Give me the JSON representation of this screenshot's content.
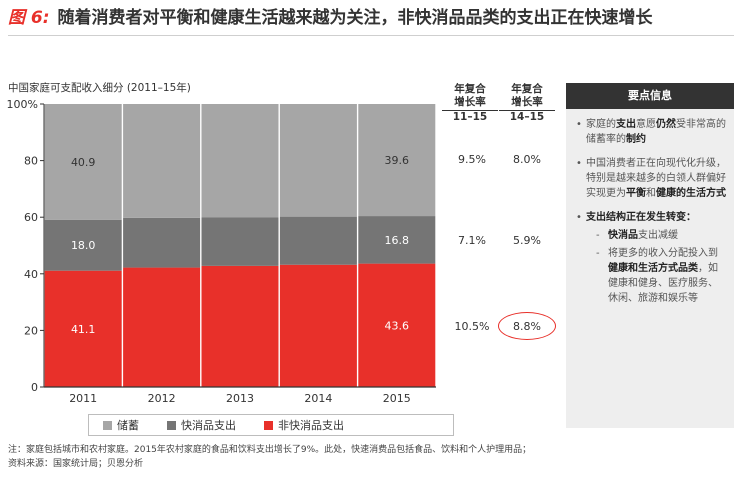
{
  "header": {
    "fig_label": "图 6:",
    "title": "随着消费者对平衡和健康生活越来越为关注，非快消品品类的支出正在快速增长"
  },
  "colors": {
    "savings": "#a6a6a6",
    "fmcg": "#757575",
    "non_fmcg": "#e8302a",
    "panel_head": "#333333",
    "panel_bg": "#eeeeee"
  },
  "chart_data": {
    "type": "bar",
    "stacked": true,
    "title": "中国家庭可支配收入细分 (2011–15年)",
    "categories": [
      "2011",
      "2012",
      "2013",
      "2014",
      "2015"
    ],
    "series": [
      {
        "name": "非快消品支出",
        "values": [
          41.1,
          42.2,
          42.8,
          43.2,
          43.6
        ],
        "data_labels": [
          "41.1",
          "",
          "",
          "",
          "43.6"
        ]
      },
      {
        "name": "快消品支出",
        "values": [
          18.0,
          17.6,
          17.2,
          17.0,
          16.8
        ],
        "data_labels": [
          "18.0",
          "",
          "",
          "",
          "16.8"
        ]
      },
      {
        "name": "储蓄",
        "values": [
          40.9,
          40.2,
          40.0,
          39.8,
          39.6
        ],
        "data_labels": [
          "40.9",
          "",
          "",
          "",
          "39.6"
        ]
      }
    ],
    "ylim": [
      0,
      100
    ],
    "yticks": [
      0,
      20,
      40,
      60,
      80,
      100
    ],
    "ytick_labels": [
      "0",
      "20",
      "40",
      "60",
      "80",
      "100%"
    ],
    "legend_position": "bottom",
    "grid": false
  },
  "cagr": {
    "col1": {
      "line1": "年复合",
      "line2": "增长率",
      "line3": "11–15"
    },
    "col2": {
      "line1": "年复合",
      "line2": "增长率",
      "line3": "14–15"
    },
    "rows": [
      {
        "series": "储蓄",
        "v1115": "9.5%",
        "v1415": "8.0%"
      },
      {
        "series": "快消品支出",
        "v1115": "7.1%",
        "v1415": "5.9%"
      },
      {
        "series": "非快消品支出",
        "v1115": "10.5%",
        "v1415": "8.8%",
        "highlight": true
      }
    ]
  },
  "legend": [
    {
      "label": "储蓄",
      "color": "#a6a6a6"
    },
    {
      "label": "快消品支出",
      "color": "#757575"
    },
    {
      "label": "非快消品支出",
      "color": "#e8302a"
    }
  ],
  "panel": {
    "title": "要点信息",
    "points": [
      {
        "a": "家庭的",
        "b": "支出",
        "c": "意愿",
        "d": "仍然",
        "e": "受非常高的储蓄率的",
        "f": "制约"
      },
      {
        "a": "中国消费者正在向现代化升级，特别是越来越多的白领人群偏好实现更为",
        "b": "平衡",
        "c": "和",
        "d": "健康的生活方式"
      }
    ],
    "point3": {
      "head": "支出结构正在发生转变：",
      "sub1_b": "快消品",
      "sub1_c": "支出减缓",
      "sub2_a": "将更多的收入分配投入到",
      "sub2_b": "健康和生活方式品类",
      "sub2_c": "，如健康和健身、医疗服务、休闲、旅游和娱乐等"
    }
  },
  "footnote": {
    "line1": "注：家庭包括城市和农村家庭。2015年农村家庭的食品和饮料支出增长了9%。此处，快速消费品包括食品、饮料和个人护理用品；",
    "line2": "资料来源：国家统计局；贝恩分析"
  }
}
